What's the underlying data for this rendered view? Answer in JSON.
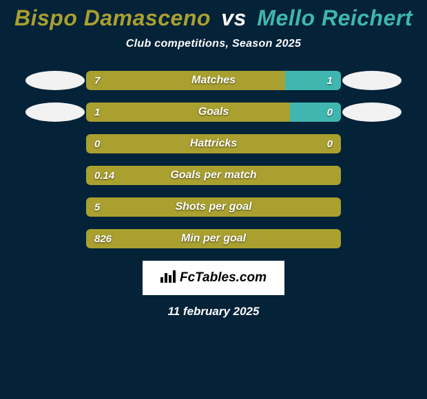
{
  "title": {
    "player1": "Bispo Damasceno",
    "vs": "vs",
    "player2": "Mello Reichert",
    "player1_color": "#a9a030",
    "vs_color": "#ffffff",
    "player2_color": "#3fb7b0",
    "fontsize": 32
  },
  "subtitle": {
    "text": "Club competitions, Season 2025",
    "fontsize": 16,
    "color": "#ffffff"
  },
  "background_color": "#042238",
  "bar_style": {
    "track_width": 370,
    "track_height": 28,
    "border_radius": 6,
    "label_fontsize": 16,
    "value_fontsize": 15,
    "text_color": "#ffffff"
  },
  "colors": {
    "left_bar": "#a9a030",
    "right_bar": "#3fb7b0",
    "badge_left": "#f2f2f2",
    "badge_right": "#f2f2f2"
  },
  "stats": [
    {
      "label": "Matches",
      "left_value": "7",
      "right_value": "1",
      "left_pct": 78,
      "right_pct": 22,
      "show_left_badge": true,
      "show_right_badge": true
    },
    {
      "label": "Goals",
      "left_value": "1",
      "right_value": "0",
      "left_pct": 80,
      "right_pct": 20,
      "show_left_badge": true,
      "show_right_badge": true
    },
    {
      "label": "Hattricks",
      "left_value": "0",
      "right_value": "0",
      "left_pct": 100,
      "right_pct": 0,
      "show_left_badge": false,
      "show_right_badge": false
    },
    {
      "label": "Goals per match",
      "left_value": "0.14",
      "right_value": "",
      "left_pct": 100,
      "right_pct": 0,
      "show_left_badge": false,
      "show_right_badge": false
    },
    {
      "label": "Shots per goal",
      "left_value": "5",
      "right_value": "",
      "left_pct": 100,
      "right_pct": 0,
      "show_left_badge": false,
      "show_right_badge": false
    },
    {
      "label": "Min per goal",
      "left_value": "826",
      "right_value": "",
      "left_pct": 100,
      "right_pct": 0,
      "show_left_badge": false,
      "show_right_badge": false
    }
  ],
  "footer": {
    "logo_text": "FcTables.com",
    "logo_bg": "#ffffff",
    "logo_text_color": "#000000",
    "logo_fontsize": 19
  },
  "date": {
    "text": "11 february 2025",
    "fontsize": 17,
    "color": "#ffffff"
  }
}
